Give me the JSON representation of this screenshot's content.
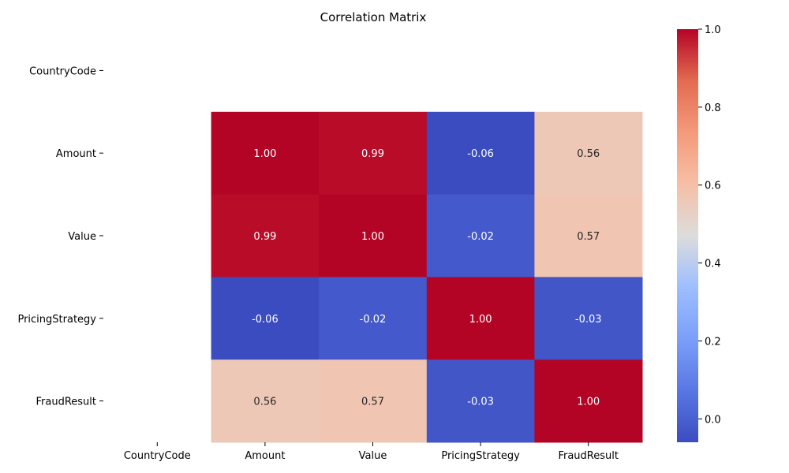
{
  "chart_data": {
    "type": "heatmap",
    "title": "Correlation Matrix",
    "xlabel": "",
    "ylabel": "",
    "colormap": "coolwarm",
    "value_format": "0.00",
    "rows": [
      "CountryCode",
      "Amount",
      "Value",
      "PricingStrategy",
      "FraudResult"
    ],
    "columns": [
      "CountryCode",
      "Amount",
      "Value",
      "PricingStrategy",
      "FraudResult"
    ],
    "values": [
      [
        null,
        null,
        null,
        null,
        null
      ],
      [
        null,
        1.0,
        0.99,
        -0.06,
        0.56
      ],
      [
        null,
        0.99,
        1.0,
        -0.02,
        0.57
      ],
      [
        null,
        -0.06,
        -0.02,
        1.0,
        -0.03
      ],
      [
        null,
        0.56,
        0.57,
        -0.03,
        1.0
      ]
    ],
    "colorbar": {
      "vmin": -0.06,
      "vmax": 1.0,
      "ticks": [
        "0.0",
        "0.2",
        "0.4",
        "0.6",
        "0.8",
        "1.0"
      ]
    }
  }
}
